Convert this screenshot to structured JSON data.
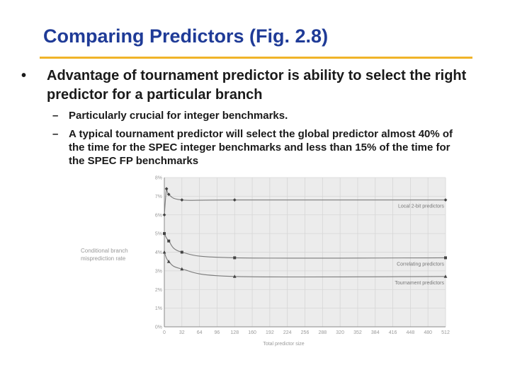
{
  "slide": {
    "title": "Comparing Predictors (Fig. 2.8)",
    "bullet": {
      "marker": "•",
      "text": "Advantage of tournament predictor is ability to select the right predictor for a particular branch"
    },
    "subbullets": [
      {
        "marker": "–",
        "text": "Particularly crucial for integer benchmarks."
      },
      {
        "marker": "–",
        "text": "A typical tournament predictor will select the global predictor almost 40% of the time for the SPEC integer benchmarks and less than 15% of the time for the SPEC FP benchmarks"
      }
    ]
  },
  "chart_data": {
    "type": "line",
    "title": "",
    "xlabel": "Total predictor size",
    "ylabel_lines": [
      "Conditional branch",
      "misprediction rate"
    ],
    "x_ticks": [
      "0",
      "32",
      "64",
      "96",
      "128",
      "160",
      "192",
      "224",
      "256",
      "288",
      "320",
      "352",
      "384",
      "416",
      "448",
      "480",
      "512"
    ],
    "y_ticks": [
      "0%",
      "1%",
      "2%",
      "3%",
      "4%",
      "5%",
      "6%",
      "7%",
      "8%"
    ],
    "xlim": [
      0,
      512
    ],
    "ylim": [
      0,
      8
    ],
    "grid": true,
    "series": [
      {
        "name": "Local 2-bit predictors",
        "x": [
          0,
          4,
          8,
          32,
          128,
          512
        ],
        "y": [
          6.0,
          7.4,
          7.1,
          6.8,
          6.8,
          6.8
        ]
      },
      {
        "name": "Correlating predictors",
        "x": [
          0,
          8,
          32,
          128,
          512
        ],
        "y": [
          5.0,
          4.6,
          4.0,
          3.7,
          3.7
        ]
      },
      {
        "name": "Tournament predictors",
        "x": [
          0,
          8,
          32,
          128,
          512
        ],
        "y": [
          4.0,
          3.5,
          3.1,
          2.7,
          2.7
        ]
      }
    ],
    "colors": {
      "line": "#7a7a7a",
      "grid": "#d6d6d6",
      "plot_bg": "#ececec"
    }
  }
}
